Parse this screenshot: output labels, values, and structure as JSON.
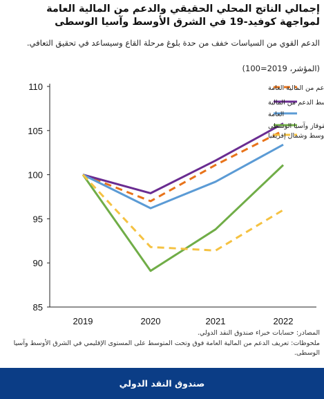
{
  "title": "إجمالي الناتج المحلي الحقيقي والدعم من المالية العامة لمواجهة كوفيد-19 في الشرق الأوسط وآسيا الوسطى",
  "subtitle": "الدعم القوي من السياسات خفف من حدة بلوغ مرحلة القاع وسيساعد في تحقيق التعافي.",
  "unit_label": "(المؤشر، 2019=100)",
  "sources": "المصادر: حسابات خبراء صندوق النقد الدولي.",
  "notes": "ملحوظات: تعريف الدعم من المالية العامة فوق وتحت المتوسط على المستوى الإقليمي في الشرق الأوسط وآسيا الوسطى.",
  "footer_label": "صندوق النقد الدولي",
  "chart_data": {
    "type": "line",
    "x": [
      "2019",
      "2020",
      "2021",
      "2022"
    ],
    "ylim": [
      85,
      110
    ],
    "yticks": [
      85,
      90,
      95,
      100,
      105,
      110
    ],
    "grid": false,
    "legend_position": "top-right",
    "series": [
      {
        "name": "الشرق الأوسط وآسيا الوسطى– فوق متوسط الدعم من المالية العامة",
        "color": "#e8731a",
        "dash": true,
        "values": [
          100,
          97.0,
          101.1,
          105.0
        ]
      },
      {
        "name": "الشرق الأوسط وآسيا الوسطى– تحت متوسط الدعم من المالية",
        "color": "#6a2c91",
        "dash": false,
        "values": [
          100,
          97.9,
          101.6,
          105.8
        ]
      },
      {
        "name": "العامة",
        "color": "#5b9bd5",
        "dash": false,
        "values": [
          100,
          96.2,
          99.2,
          103.4
        ]
      },
      {
        "name": "القوقاز وآسيا الوسطى",
        "color": "#70ad47",
        "dash": false,
        "values": [
          100,
          89.1,
          93.8,
          101.1
        ]
      },
      {
        "name": "الشرق الأوسط وشمال إفريقيا",
        "color": "#f5c242",
        "dash": true,
        "values": [
          100,
          91.8,
          91.4,
          96.0
        ]
      }
    ]
  }
}
